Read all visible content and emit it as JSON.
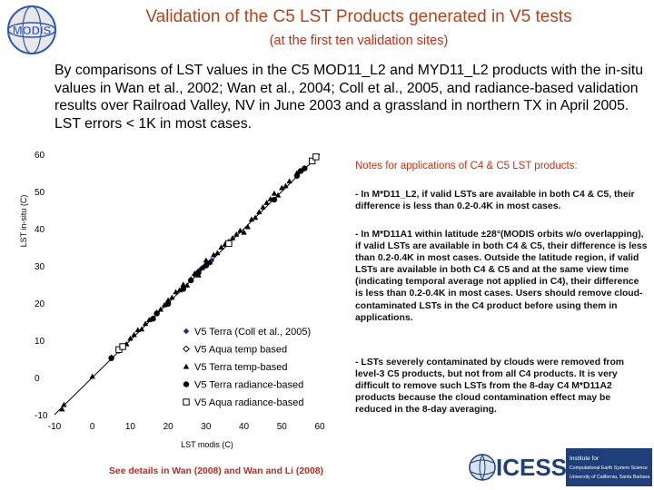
{
  "header": {
    "title": "Validation of the C5 LST Products generated in V5 tests",
    "subtitle": "(at the first ten validation sites)",
    "logo_text": "MODIS"
  },
  "intro": "By comparisons of LST values in the C5 MOD11_L2 and MYD11_L2 products with the in-situ values in Wan et al., 2002; Wan et al., 2004; Coll et al., 2005, and radiance-based validation results over Railroad Valley, NV in June 2003 and a grassland in northern TX in April 2005. LST errors < 1K in most cases.",
  "notes": {
    "heading": "Notes for applications of C4 & C5 LST products:",
    "items": [
      "- In M*D11_L2, if valid LSTs are available in both C4 & C5, their difference is less than 0.2-0.4K in most cases.",
      "- In M*D11A1 within latitude ±28°(MODIS orbits w/o overlapping), if valid LSTs are available in both C4 & C5, their difference is less than 0.2-0.4K in most cases. Outside the latitude region, if valid LSTs are available in both C4 & C5 and at the same view time (indicating temporal average not applied in C4), their difference is less than 0.2-0.4K in most cases. Users should remove cloud-contaminated LSTs in the C4 product before using them in applications.",
      "- LSTs severely contaminated by clouds were removed from level-3 C5 products, but not from all C4 products. It is very difficult to remove such LSTs from the 8-day C4 M*D11A2 products because the cloud contamination effect may be reduced in the 8-day averaging."
    ]
  },
  "footer": "See details in Wan (2008) and Wan and Li (2008)",
  "right_logo": {
    "text": "ICESS",
    "caption_lines": [
      "Institute for",
      "Computational Earth System Science",
      "University of California, Santa Barbara"
    ]
  },
  "chart_data": {
    "type": "scatter",
    "xlabel": "LST modis (C)",
    "ylabel": "LST in-situ (C)",
    "xlim": [
      -10,
      60
    ],
    "ylim": [
      -10,
      60
    ],
    "x_ticks": [
      -10,
      0,
      10,
      20,
      30,
      40,
      50,
      60
    ],
    "y_ticks": [
      -10,
      0,
      10,
      20,
      30,
      40,
      50,
      60
    ],
    "reference_line": "1:1",
    "legend_placement": "bottom-right",
    "colors": {
      "terra_coll": "#1c2a8a",
      "default": "#000000"
    },
    "series": [
      {
        "name": "V5 Terra (Coll et al., 2005)",
        "marker": "diamond",
        "points": [
          [
            27,
            27.5
          ],
          [
            28,
            28.5
          ],
          [
            28.5,
            29
          ],
          [
            29,
            29.5
          ],
          [
            29.5,
            29.8
          ],
          [
            30,
            30.2
          ],
          [
            30.5,
            30.8
          ],
          [
            31,
            30.8
          ],
          [
            31.5,
            31.5
          ],
          [
            28.2,
            28.8
          ]
        ]
      },
      {
        "name": "V5 Aqua temp based",
        "marker": "diamond-open",
        "points": [
          [
            36,
            36.3
          ],
          [
            7,
            7.3
          ]
        ]
      },
      {
        "name": "V5 Terra temp-based",
        "marker": "triangle",
        "points": [
          [
            -8,
            -8.5
          ],
          [
            -7.5,
            -7.3
          ],
          [
            0,
            0.3
          ],
          [
            5,
            5.5
          ],
          [
            8,
            8.5
          ],
          [
            9,
            9
          ],
          [
            10,
            10.5
          ],
          [
            11,
            11.5
          ],
          [
            12,
            12.8
          ],
          [
            13,
            13
          ],
          [
            14,
            14.5
          ],
          [
            15,
            15.5
          ],
          [
            16,
            16
          ],
          [
            17,
            17.5
          ],
          [
            18,
            18.3
          ],
          [
            19,
            19.5
          ],
          [
            20,
            20.8
          ],
          [
            21,
            21.5
          ],
          [
            22,
            23
          ],
          [
            23,
            23.5
          ],
          [
            24,
            25
          ],
          [
            25,
            24.8
          ],
          [
            26,
            26.5
          ],
          [
            27,
            28
          ],
          [
            28,
            27.5
          ],
          [
            29,
            29.5
          ],
          [
            30,
            31.5
          ],
          [
            31,
            31
          ],
          [
            32,
            33
          ],
          [
            33,
            33.5
          ],
          [
            34,
            35
          ],
          [
            35,
            35.8
          ],
          [
            37,
            37.5
          ],
          [
            38,
            38.5
          ],
          [
            39,
            39.5
          ],
          [
            40,
            39
          ],
          [
            41,
            40.5
          ],
          [
            42,
            42.5
          ],
          [
            43,
            43
          ],
          [
            44,
            44.5
          ],
          [
            45,
            45.8
          ],
          [
            46,
            47
          ],
          [
            47,
            48
          ],
          [
            48,
            49.5
          ],
          [
            49,
            49
          ],
          [
            50,
            51
          ],
          [
            51,
            51.5
          ],
          [
            52,
            52.8
          ],
          [
            54,
            55
          ]
        ]
      },
      {
        "name": "V5 Terra radiance-based",
        "marker": "circle",
        "points": [
          [
            5,
            5.2
          ],
          [
            8,
            8.2
          ],
          [
            16,
            15.8
          ],
          [
            17,
            17.2
          ],
          [
            20,
            19.8
          ],
          [
            24,
            23.8
          ],
          [
            26,
            26.1
          ],
          [
            28,
            28.2
          ],
          [
            30,
            30.1
          ],
          [
            36,
            36.2
          ],
          [
            48,
            47.8
          ],
          [
            54,
            54.2
          ],
          [
            55,
            55.5
          ],
          [
            56,
            56.2
          ]
        ]
      },
      {
        "name": "V5 Aqua radiance-based",
        "marker": "square-open",
        "points": [
          [
            7,
            7.5
          ],
          [
            8,
            8.3
          ],
          [
            36,
            36
          ],
          [
            58,
            58.2
          ],
          [
            59,
            59.3
          ]
        ]
      }
    ]
  }
}
